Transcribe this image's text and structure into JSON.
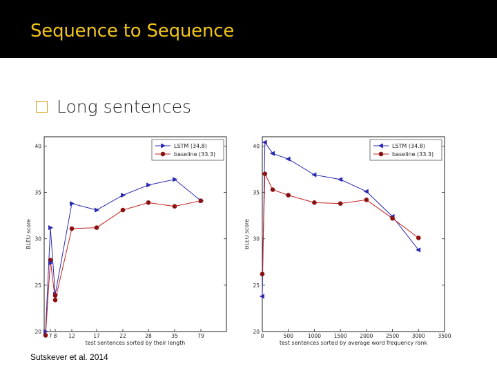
{
  "slide": {
    "title": "Sequence to Sequence",
    "bullet": "Long sentences",
    "citation": "Sutskever et al. 2014"
  },
  "colors": {
    "title": "#f0c419",
    "lstm": "#2a2ab0",
    "baseline": "#c42020",
    "baseline_marker": "#8b1010"
  },
  "chart_data": [
    {
      "type": "line",
      "xlabel": "test sentences sorted by their length",
      "ylabel": "BLEU score",
      "ylim": [
        20,
        41
      ],
      "yticks": [
        20,
        25,
        30,
        35,
        40
      ],
      "x_categorical": true,
      "categories": [
        "4",
        "7",
        "8",
        "12",
        "17",
        "22",
        "28",
        "35",
        "79"
      ],
      "legend_position": "top-right",
      "series": [
        {
          "name": "LSTM (34.8)",
          "marker": "triangle-right",
          "values": [
            20.0,
            31.2,
            24.0,
            33.8,
            33.1,
            34.7,
            35.8,
            36.4,
            34.1
          ]
        },
        {
          "name": "baseline (33.3)",
          "marker": "circle",
          "values": [
            19.6,
            27.7,
            23.4,
            31.1,
            31.2,
            33.1,
            33.9,
            33.5,
            34.1
          ]
        }
      ],
      "extra_points": {
        "lstm": [
          {
            "cat": "7",
            "value": 27.4
          }
        ],
        "baseline": [
          {
            "cat": "8",
            "value": 23.9
          }
        ]
      }
    },
    {
      "type": "line",
      "xlabel": "test sentences sorted by average word frequency rank",
      "ylabel": "BLEU score",
      "ylim": [
        20,
        41
      ],
      "yticks": [
        20,
        25,
        30,
        35,
        40
      ],
      "xlim": [
        0,
        3500
      ],
      "xticks": [
        0,
        500,
        1000,
        1500,
        2000,
        2500,
        3000,
        3500
      ],
      "legend_position": "top-right",
      "series": [
        {
          "name": "LSTM (34.8)",
          "marker": "triangle-left",
          "x": [
            0,
            50,
            200,
            500,
            1000,
            1500,
            2000,
            2500,
            3000
          ],
          "values": [
            23.8,
            40.4,
            39.2,
            38.6,
            36.9,
            36.4,
            35.1,
            32.4,
            28.8
          ]
        },
        {
          "name": "baseline (33.3)",
          "marker": "circle",
          "x": [
            0,
            50,
            200,
            500,
            1000,
            1500,
            2000,
            2500,
            3000
          ],
          "values": [
            26.2,
            37.0,
            35.3,
            34.7,
            33.9,
            33.8,
            34.2,
            32.2,
            30.1
          ]
        }
      ]
    }
  ]
}
